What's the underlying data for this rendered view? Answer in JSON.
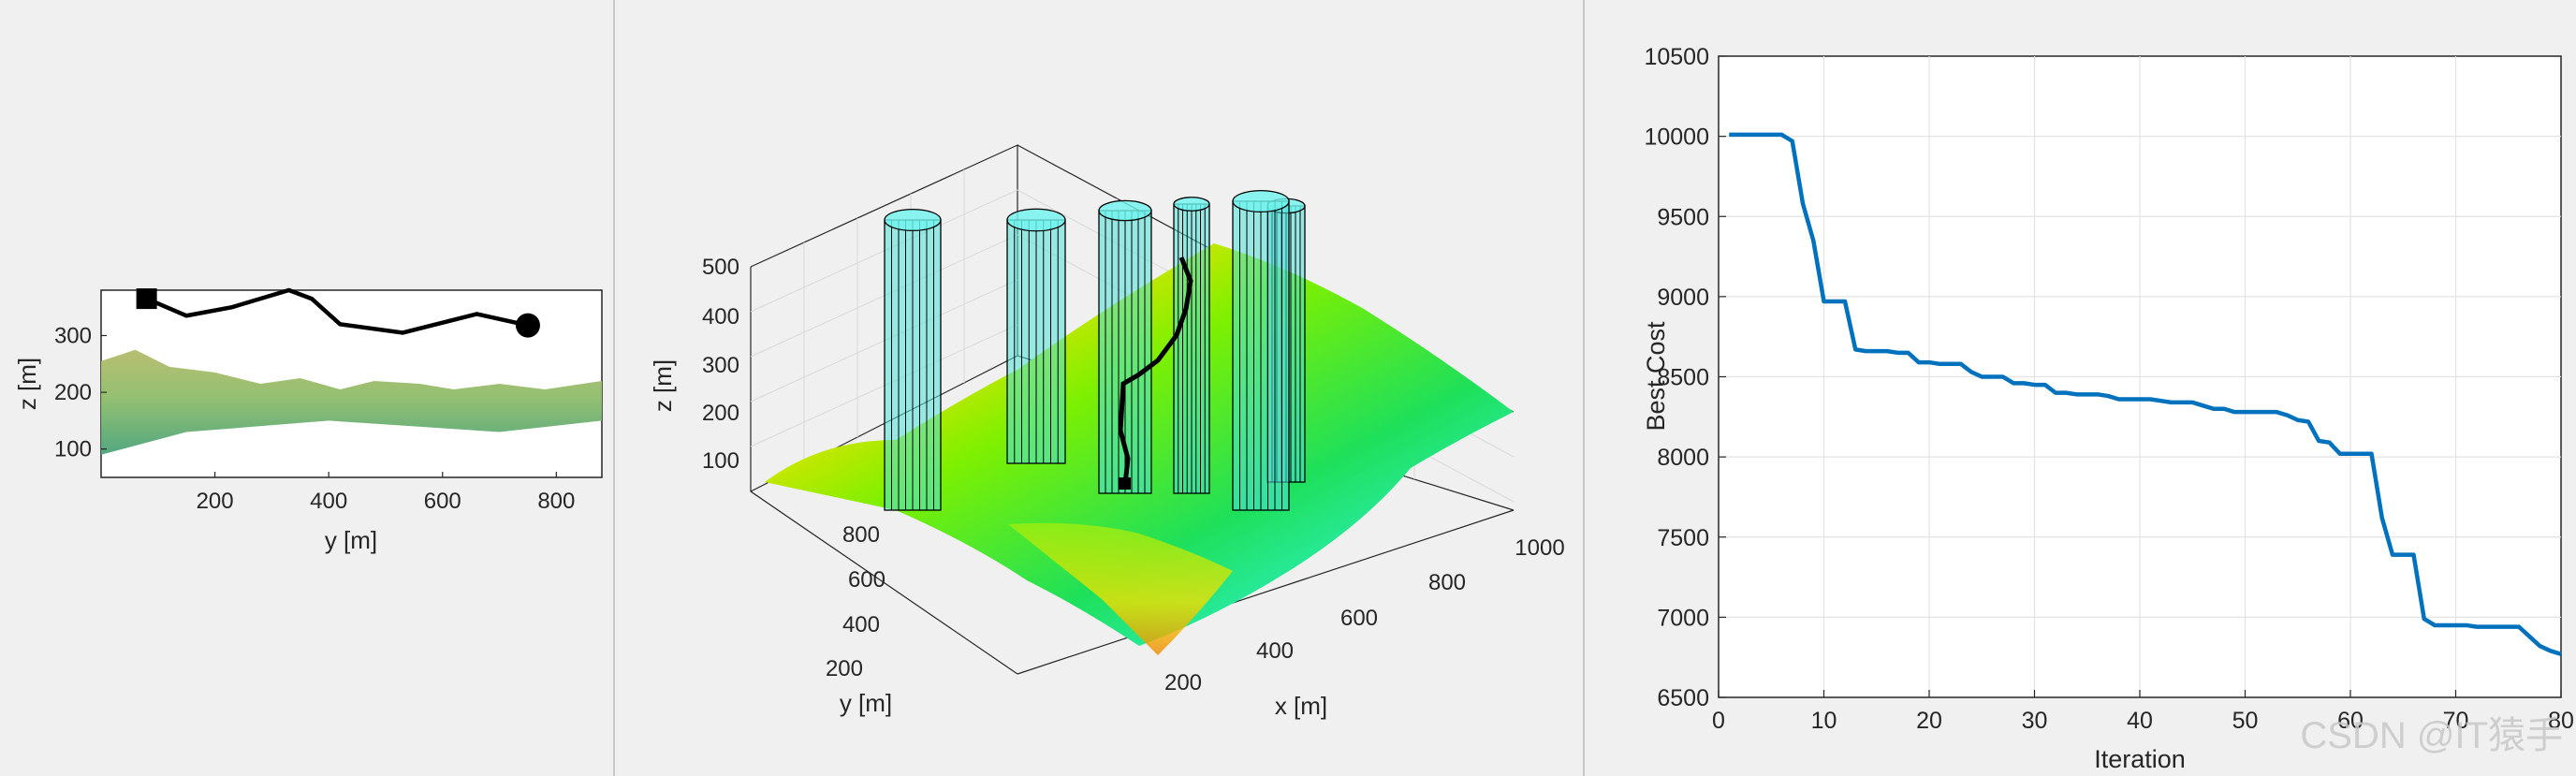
{
  "chart_data": [
    {
      "type": "line",
      "view": "side",
      "xlabel": "y [m]",
      "ylabel": "z [m]",
      "xticks": [
        200,
        400,
        600,
        800
      ],
      "yticks": [
        100,
        200,
        300
      ],
      "xlim": [
        0,
        880
      ],
      "ylim": [
        50,
        380
      ],
      "grid": false,
      "path": {
        "y": [
          80,
          150,
          230,
          330,
          370,
          420,
          530,
          660,
          750
        ],
        "z": [
          365,
          335,
          350,
          380,
          365,
          320,
          305,
          338,
          318
        ]
      },
      "start_marker": "square",
      "end_marker": "circle",
      "terrain_top": {
        "y": [
          0,
          60,
          120,
          200,
          280,
          350,
          420,
          480,
          560,
          620,
          700,
          780,
          880
        ],
        "z": [
          255,
          275,
          245,
          235,
          215,
          225,
          205,
          220,
          215,
          205,
          215,
          205,
          220
        ]
      }
    },
    {
      "type": "surface3d",
      "xlabel": "x [m]",
      "ylabel": "y [m]",
      "zlabel": "z [m]",
      "xticks": [
        200,
        400,
        600,
        800,
        1000
      ],
      "yticks": [
        200,
        400,
        600,
        800
      ],
      "zticks": [
        100,
        200,
        300,
        400,
        500
      ],
      "grid": true,
      "obstacles": "vertical cylinders",
      "colormap": "jet"
    },
    {
      "type": "line",
      "xlabel": "Iteration",
      "ylabel": "Best Cost",
      "xlim": [
        0,
        80
      ],
      "ylim": [
        6500,
        10500
      ],
      "xticks": [
        0,
        10,
        20,
        30,
        40,
        50,
        60,
        70,
        80
      ],
      "yticks": [
        6500,
        7000,
        7500,
        8000,
        8500,
        9000,
        9500,
        10000,
        10500
      ],
      "grid": true,
      "color": "#0072BD",
      "series": [
        {
          "x": [
            1,
            6,
            7,
            8,
            9,
            10,
            11,
            12,
            13,
            14,
            15,
            16,
            17,
            18,
            19,
            20,
            21,
            22,
            23,
            24,
            25,
            26,
            27,
            28,
            29,
            30,
            31,
            32,
            33,
            34,
            35,
            36,
            37,
            38,
            39,
            40,
            41,
            42,
            43,
            44,
            45,
            46,
            47,
            48,
            49,
            50,
            51,
            52,
            53,
            54,
            55,
            56,
            57,
            58,
            59,
            60,
            61,
            62,
            63,
            64,
            65,
            66,
            67,
            68,
            69,
            70,
            71,
            72,
            73,
            74,
            75,
            76,
            77,
            78,
            79,
            80
          ],
          "values": [
            10010,
            10010,
            9970,
            9580,
            9350,
            8970,
            8970,
            8970,
            8670,
            8660,
            8660,
            8660,
            8650,
            8650,
            8590,
            8590,
            8580,
            8580,
            8580,
            8530,
            8500,
            8500,
            8500,
            8460,
            8460,
            8450,
            8450,
            8400,
            8400,
            8390,
            8390,
            8390,
            8380,
            8360,
            8360,
            8360,
            8360,
            8350,
            8340,
            8340,
            8340,
            8320,
            8300,
            8300,
            8280,
            8280,
            8280,
            8280,
            8280,
            8260,
            8230,
            8220,
            8100,
            8090,
            8020,
            8020,
            8020,
            8020,
            7620,
            7390,
            7390,
            7390,
            6990,
            6950,
            6950,
            6950,
            6950,
            6940,
            6940,
            6940,
            6940,
            6940,
            6880,
            6820,
            6790,
            6770
          ]
        }
      ]
    }
  ],
  "watermark": "CSDN @IT猿手"
}
